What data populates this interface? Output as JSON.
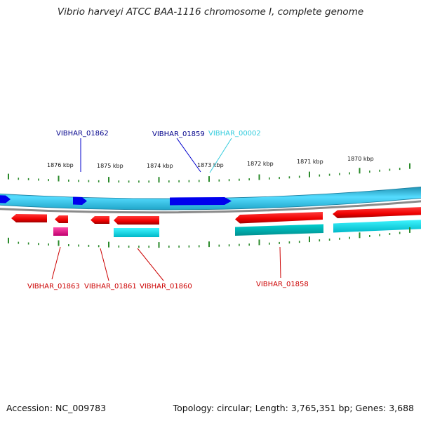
{
  "title": "Vibrio harveyi ATCC BAA-1116 chromosome I, complete genome",
  "footer": {
    "accession": "Accession: NC_009783",
    "summary": "Topology: circular; Length: 3,765,351 bp; Genes: 3,688"
  },
  "colors": {
    "forward_gene": "#0000ee",
    "forward_label": "#00008b",
    "cds_red": "#ee0000",
    "label_red": "#cc0000",
    "cds_cyan": "#00e5ee",
    "label_cyan": "#33ccdd",
    "teal": "#00b5b5",
    "magenta": "#ee1493",
    "backbone": "#3ad0f0",
    "tick": "#2a8a2a",
    "gray_line": "#8a8a8a"
  },
  "scale_labels": [
    "1876 kbp",
    "1875 kbp",
    "1874 kbp",
    "1873 kbp",
    "1872 kbp",
    "1871 kbp",
    "1870 kbp"
  ],
  "gene_labels": {
    "top": [
      {
        "text": "VIBHAR_01862",
        "color": "forward_label"
      },
      {
        "text": "VIBHAR_01859",
        "color": "forward_label"
      },
      {
        "text": "VIBHAR_00002",
        "color": "label_cyan"
      }
    ],
    "bottom": [
      {
        "text": "VIBHAR_01863",
        "color": "label_red"
      },
      {
        "text": "VIBHAR_01861",
        "color": "label_red"
      },
      {
        "text": "VIBHAR_01860",
        "color": "label_red"
      },
      {
        "text": "VIBHAR_01858",
        "color": "label_red"
      }
    ]
  }
}
